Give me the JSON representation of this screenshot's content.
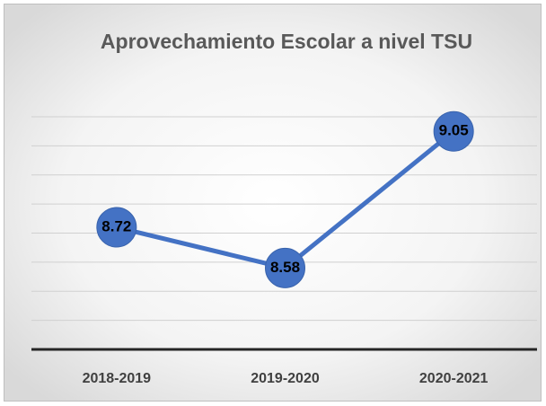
{
  "chart_data": {
    "type": "line",
    "title": "Aprovechamiento Escolar a nivel TSU",
    "categories": [
      "2018-2019",
      "2019-2020",
      "2020-2021"
    ],
    "values": [
      8.72,
      8.58,
      9.05
    ],
    "color": "#4472c4",
    "ylim": [
      8.3,
      9.1
    ],
    "yticks": [
      8.3,
      8.4,
      8.5,
      8.6,
      8.7,
      8.8,
      8.9,
      9.0,
      9.1
    ],
    "grid": true
  }
}
